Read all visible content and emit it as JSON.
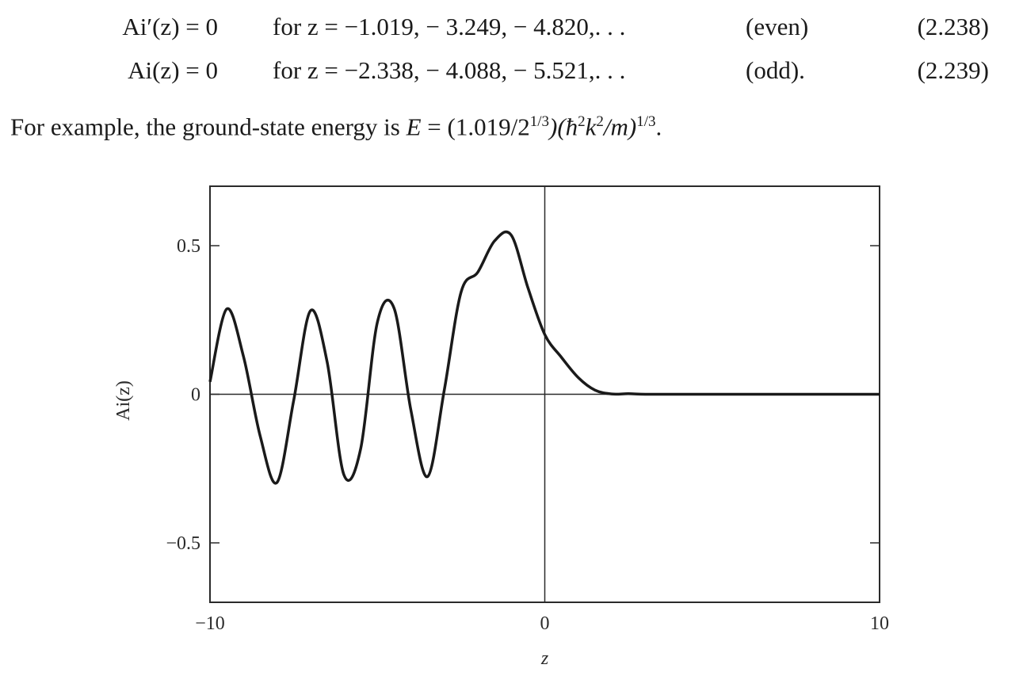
{
  "equations": [
    {
      "lhs": "Ai′(z) = 0",
      "cond": "for z = −1.019,  − 3.249,  − 4.820,. . .",
      "parity": "(even)",
      "number": "(2.238)"
    },
    {
      "lhs": "Ai(z) = 0",
      "cond": "for z = −2.338,  − 4.088,  − 5.521,. . .",
      "parity": "(odd).",
      "number": "(2.239)"
    }
  ],
  "paragraph": {
    "text_before": "For example, the ground-state energy is ",
    "E": "E",
    "eq_text": " = (1.019/2",
    "exp1": "1/3",
    "mid": ")(ħ",
    "sup2": "2",
    "k": "k",
    "sup3": "2",
    "tail": "/m)",
    "exp2": "1/3",
    "end": "."
  },
  "chart_data": {
    "type": "line",
    "xlabel": "z",
    "ylabel": "Ai(z)",
    "xlim": [
      -10,
      10
    ],
    "ylim": [
      -0.7,
      0.7
    ],
    "x_ticks": [
      -10,
      0,
      10
    ],
    "x_tick_labels": [
      "−10",
      "0",
      "10"
    ],
    "y_ticks": [
      0.5,
      0,
      -0.5
    ],
    "y_tick_labels": [
      "0.5",
      "0",
      "−0.5"
    ],
    "reference_lines": {
      "x": 0,
      "y": 0
    },
    "series": [
      {
        "x": [
          -10,
          -9.5,
          -9.0,
          -8.5,
          -8.0,
          -7.5,
          -7.0,
          -6.5,
          -6.0,
          -5.5,
          -5.0,
          -4.5,
          -4.0,
          -3.5,
          -3.0,
          -2.5,
          -2.0,
          -1.5,
          -1.0,
          -0.5,
          0,
          0.5,
          1,
          1.5,
          2,
          2.5,
          3,
          4,
          5,
          6,
          8,
          10
        ],
        "y": [
          0.042,
          0.287,
          0.127,
          -0.141,
          -0.297,
          -0.021,
          0.281,
          0.108,
          -0.271,
          -0.184,
          0.243,
          0.289,
          -0.053,
          -0.277,
          0.016,
          0.344,
          0.411,
          0.516,
          0.535,
          0.357,
          0.201,
          0.124,
          0.056,
          0.014,
          0.001,
          0.002,
          0,
          0,
          0,
          0,
          0,
          0
        ]
      }
    ]
  }
}
